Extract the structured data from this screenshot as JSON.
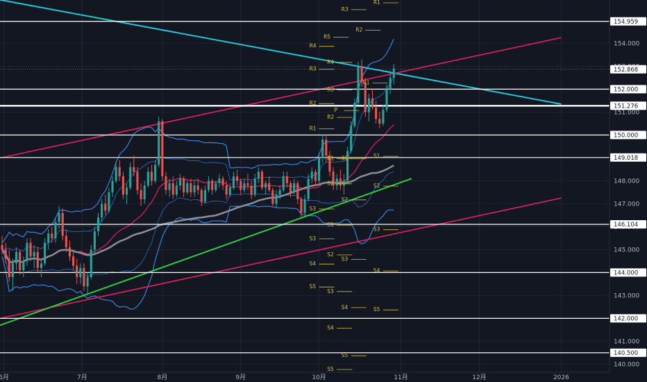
{
  "chart_data": {
    "type": "line",
    "title": "",
    "xlabel": "",
    "ylabel": "",
    "ylim": [
      139.6,
      155.8
    ],
    "y_ticks": [
      140.0,
      141.0,
      142.0,
      143.0,
      144.0,
      145.0,
      146.0,
      147.0,
      148.0,
      149.0,
      150.0,
      151.0,
      152.0,
      153.0,
      154.0
    ],
    "x_ticks": [
      {
        "label": "6月",
        "t": 0.5
      },
      {
        "label": "7月",
        "t": 22.5
      },
      {
        "label": "8月",
        "t": 45
      },
      {
        "label": "9月",
        "t": 67
      },
      {
        "label": "10月",
        "t": 89
      },
      {
        "label": "11月",
        "t": 112
      },
      {
        "label": "12月",
        "t": 134
      },
      {
        "label": "2026",
        "t": 157
      }
    ],
    "x_range": [
      0,
      171
    ],
    "grid": true,
    "horizontal_levels": [
      154.959,
      152.0,
      151.276,
      150.0,
      149.018,
      146.104,
      144.0,
      142.0,
      140.5
    ],
    "last_price": 152.868,
    "candles": [
      [
        145.2,
        145.6,
        144.8,
        145.0
      ],
      [
        145.0,
        145.3,
        144.4,
        144.6
      ],
      [
        144.6,
        145.0,
        143.6,
        143.8
      ],
      [
        143.8,
        144.6,
        143.2,
        144.4
      ],
      [
        144.4,
        145.1,
        144.1,
        144.9
      ],
      [
        144.9,
        145.0,
        143.9,
        144.1
      ],
      [
        144.1,
        144.7,
        143.8,
        144.5
      ],
      [
        144.5,
        145.5,
        144.3,
        145.3
      ],
      [
        145.3,
        145.5,
        144.5,
        144.7
      ],
      [
        144.7,
        145.2,
        144.2,
        144.9
      ],
      [
        144.9,
        145.1,
        144.0,
        144.2
      ],
      [
        144.2,
        144.6,
        143.8,
        144.4
      ],
      [
        144.4,
        145.5,
        144.3,
        145.3
      ],
      [
        145.3,
        145.9,
        145.0,
        145.7
      ],
      [
        145.7,
        146.0,
        145.3,
        145.5
      ],
      [
        145.5,
        146.4,
        145.3,
        146.2
      ],
      [
        146.2,
        146.9,
        145.9,
        146.6
      ],
      [
        146.6,
        146.8,
        145.4,
        145.6
      ],
      [
        145.6,
        145.9,
        144.9,
        145.1
      ],
      [
        145.1,
        145.4,
        144.5,
        144.7
      ],
      [
        144.7,
        145.0,
        144.1,
        144.3
      ],
      [
        144.3,
        144.6,
        143.5,
        143.8
      ],
      [
        143.8,
        144.4,
        143.5,
        144.2
      ],
      [
        144.2,
        144.4,
        143.2,
        143.4
      ],
      [
        143.4,
        144.0,
        143.1,
        143.8
      ],
      [
        143.8,
        145.2,
        143.7,
        145.0
      ],
      [
        145.0,
        146.0,
        144.8,
        145.8
      ],
      [
        145.8,
        146.6,
        145.6,
        146.4
      ],
      [
        146.4,
        147.2,
        146.2,
        147.0
      ],
      [
        147.0,
        147.4,
        146.5,
        146.7
      ],
      [
        146.7,
        147.7,
        146.6,
        147.5
      ],
      [
        147.5,
        148.2,
        147.3,
        148.0
      ],
      [
        148.0,
        148.8,
        147.9,
        148.6
      ],
      [
        148.6,
        148.9,
        148.0,
        148.2
      ],
      [
        148.2,
        148.4,
        147.2,
        147.4
      ],
      [
        147.4,
        147.9,
        147.0,
        147.7
      ],
      [
        147.7,
        148.8,
        147.6,
        148.6
      ],
      [
        148.6,
        149.1,
        148.2,
        148.4
      ],
      [
        148.4,
        148.6,
        147.4,
        147.6
      ],
      [
        147.6,
        147.9,
        146.9,
        147.2
      ],
      [
        147.2,
        148.0,
        147.0,
        147.8
      ],
      [
        147.8,
        148.6,
        147.7,
        148.4
      ],
      [
        148.4,
        148.7,
        147.8,
        148.0
      ],
      [
        148.0,
        148.9,
        147.9,
        148.7
      ],
      [
        148.7,
        150.8,
        148.6,
        150.6
      ],
      [
        150.6,
        150.7,
        148.0,
        148.2
      ],
      [
        148.2,
        148.4,
        147.4,
        147.6
      ],
      [
        147.6,
        148.1,
        147.3,
        147.9
      ],
      [
        147.9,
        148.2,
        147.2,
        147.4
      ],
      [
        147.4,
        148.0,
        147.3,
        147.8
      ],
      [
        147.8,
        148.3,
        147.6,
        148.1
      ],
      [
        148.1,
        148.2,
        147.3,
        147.5
      ],
      [
        147.5,
        148.0,
        147.4,
        147.9
      ],
      [
        147.9,
        148.1,
        147.3,
        147.5
      ],
      [
        147.5,
        148.0,
        147.3,
        147.8
      ],
      [
        147.8,
        148.1,
        147.4,
        147.6
      ],
      [
        147.6,
        147.7,
        146.9,
        147.1
      ],
      [
        147.1,
        147.8,
        147.0,
        147.6
      ],
      [
        147.6,
        148.2,
        147.5,
        148.0
      ],
      [
        148.0,
        148.1,
        147.4,
        147.6
      ],
      [
        147.6,
        148.0,
        147.5,
        147.9
      ],
      [
        147.9,
        148.3,
        147.7,
        148.1
      ],
      [
        148.1,
        148.2,
        147.6,
        147.8
      ],
      [
        147.8,
        148.0,
        147.2,
        147.4
      ],
      [
        147.4,
        147.9,
        147.3,
        147.7
      ],
      [
        147.7,
        148.4,
        147.6,
        148.2
      ],
      [
        148.2,
        148.5,
        147.8,
        148.0
      ],
      [
        148.0,
        148.1,
        147.4,
        147.6
      ],
      [
        147.6,
        148.1,
        147.5,
        147.9
      ],
      [
        147.9,
        148.3,
        147.6,
        147.8
      ],
      [
        147.8,
        148.0,
        147.2,
        147.4
      ],
      [
        147.4,
        148.3,
        147.3,
        148.1
      ],
      [
        148.1,
        148.6,
        147.9,
        148.4
      ],
      [
        148.4,
        148.5,
        147.6,
        147.7
      ],
      [
        147.7,
        148.0,
        147.4,
        147.9
      ],
      [
        147.9,
        148.2,
        147.5,
        147.6
      ],
      [
        147.6,
        147.7,
        146.9,
        147.0
      ],
      [
        147.0,
        147.6,
        146.8,
        147.4
      ],
      [
        147.4,
        147.8,
        147.2,
        147.6
      ],
      [
        147.6,
        148.4,
        147.5,
        148.2
      ],
      [
        148.2,
        148.4,
        147.7,
        147.9
      ],
      [
        147.9,
        148.0,
        147.3,
        147.5
      ],
      [
        147.5,
        148.1,
        147.4,
        147.9
      ],
      [
        147.9,
        148.0,
        147.0,
        147.2
      ],
      [
        147.2,
        147.3,
        146.4,
        146.6
      ],
      [
        146.6,
        147.4,
        146.5,
        147.2
      ],
      [
        147.2,
        148.3,
        147.1,
        148.1
      ],
      [
        148.1,
        148.6,
        147.9,
        148.4
      ],
      [
        148.4,
        148.5,
        147.8,
        148.0
      ],
      [
        148.0,
        149.2,
        147.9,
        149.0
      ],
      [
        149.0,
        150.0,
        148.8,
        149.8
      ],
      [
        149.8,
        150.0,
        148.8,
        149.1
      ],
      [
        149.1,
        149.3,
        148.2,
        148.4
      ],
      [
        148.4,
        148.6,
        147.6,
        147.8
      ],
      [
        147.8,
        148.3,
        147.6,
        148.1
      ],
      [
        148.1,
        148.5,
        147.6,
        147.8
      ],
      [
        147.8,
        148.3,
        147.4,
        148.0
      ],
      [
        148.0,
        149.5,
        147.9,
        149.3
      ],
      [
        149.3,
        150.6,
        149.2,
        150.4
      ],
      [
        150.4,
        151.6,
        150.3,
        151.4
      ],
      [
        151.4,
        153.2,
        151.3,
        153.0
      ],
      [
        153.0,
        153.3,
        152.1,
        152.3
      ],
      [
        152.3,
        152.5,
        150.8,
        151.0
      ],
      [
        151.0,
        151.8,
        150.6,
        151.6
      ],
      [
        151.6,
        152.0,
        151.1,
        151.2
      ],
      [
        151.2,
        151.5,
        150.5,
        150.7
      ],
      [
        150.7,
        151.0,
        150.3,
        150.5
      ],
      [
        150.5,
        151.3,
        150.4,
        151.1
      ],
      [
        151.1,
        152.2,
        151.0,
        152.0
      ],
      [
        152.0,
        152.8,
        151.8,
        152.5
      ],
      [
        152.5,
        153.1,
        152.2,
        152.9
      ]
    ],
    "series": []
  }
}
